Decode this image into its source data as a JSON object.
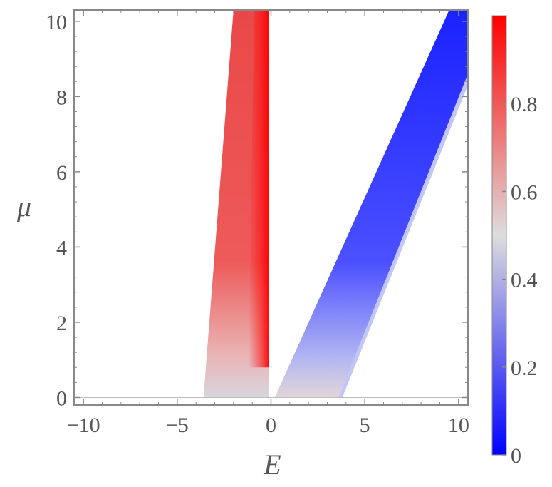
{
  "chart_data": {
    "type": "heatmap",
    "title": "",
    "xlabel": "E",
    "ylabel": "μ",
    "xlim": [
      -10.5,
      10.5
    ],
    "ylim": [
      -0.2,
      10.3
    ],
    "x_ticks": [
      -10,
      -5,
      0,
      5,
      10
    ],
    "y_ticks": [
      0,
      2,
      4,
      6,
      8,
      10
    ],
    "x_tick_labels": [
      "−10",
      "−5",
      "0",
      "5",
      "10"
    ],
    "y_tick_labels": [
      "0",
      "2",
      "4",
      "6",
      "8",
      "10"
    ],
    "colorbar": {
      "range": [
        0,
        1
      ],
      "ticks": [
        0,
        0.2,
        0.4,
        0.6,
        0.8
      ],
      "tick_labels": [
        "0",
        "0.2",
        "0.4",
        "0.6",
        "0.8"
      ],
      "colors": [
        "#0000ff",
        "#dddddd",
        "#ff0000"
      ]
    },
    "regions": [
      {
        "name": "",
        "polygon": [
          [
            -3.6,
            0
          ],
          [
            -0.1,
            0
          ],
          [
            -0.1,
            10.3
          ],
          [
            -2.0,
            10.3
          ]
        ],
        "value_low": 0.5,
        "value_high": 0.98
      },
      {
        "name": "",
        "polygon": [
          [
            0.2,
            0
          ],
          [
            3.6,
            0
          ],
          [
            10.5,
            8.6
          ],
          [
            10.5,
            10.3
          ],
          [
            9.5,
            10.3
          ]
        ],
        "value_low": 0.5,
        "value_high": 0.05
      }
    ],
    "grid": false
  }
}
